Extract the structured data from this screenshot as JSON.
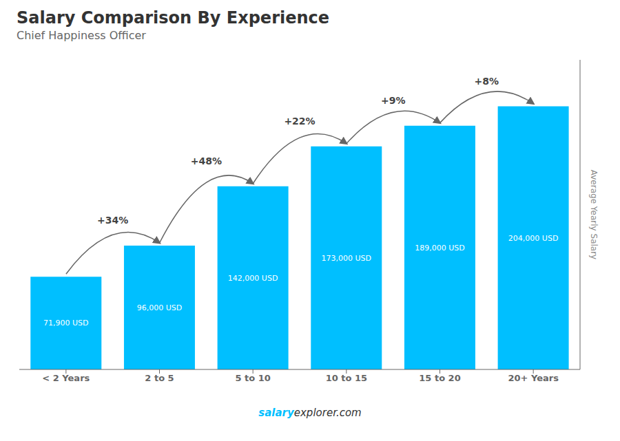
{
  "chart_data": {
    "type": "bar",
    "title": "Salary Comparison By Experience",
    "subtitle": "Chief Happiness Officer",
    "categories": [
      "< 2 Years",
      "2 to 5",
      "5 to 10",
      "10 to 15",
      "15 to 20",
      "20+ Years"
    ],
    "values": [
      71900,
      96000,
      142000,
      173000,
      189000,
      204000
    ],
    "value_labels": [
      "71,900 USD",
      "96,000 USD",
      "142,000 USD",
      "173,000 USD",
      "189,000 USD",
      "204,000 USD"
    ],
    "data_labels": true,
    "annotations": [
      "+34%",
      "+48%",
      "+22%",
      "+9%",
      "+8%"
    ],
    "ylabel": "Average Yearly Salary",
    "ylim": [
      0,
      240000
    ],
    "tick_labels": "x",
    "grid": false,
    "color": "#00BFFF",
    "watermark": [
      "salary",
      "explorer.com"
    ]
  }
}
